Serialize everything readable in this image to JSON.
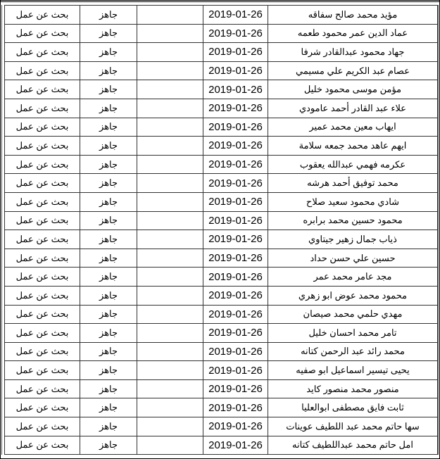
{
  "columns": {
    "status": "بحث عن عمل",
    "state": "جاهز",
    "empty": "",
    "date": "2019-01-26"
  },
  "rows": [
    {
      "name": "مؤيد محمد صالح سفاقه",
      "date": "2019-01-26",
      "ready": "جاهز",
      "status": "بحث عن عمل"
    },
    {
      "name": "عماد الدين عمر محمود طعمه",
      "date": "2019-01-26",
      "ready": "جاهز",
      "status": "بحث عن عمل"
    },
    {
      "name": "جهاد محمود عبدالقادر شرفا",
      "date": "2019-01-26",
      "ready": "جاهز",
      "status": "بحث عن عمل"
    },
    {
      "name": "عصام عبد الكريم علي مسيمي",
      "date": "2019-01-26",
      "ready": "جاهز",
      "status": "بحث عن عمل"
    },
    {
      "name": "مؤمن موسى محمود خليل",
      "date": "2019-01-26",
      "ready": "جاهز",
      "status": "بحث عن عمل"
    },
    {
      "name": "علاء عبد القادر أحمد عامودي",
      "date": "2019-01-26",
      "ready": "جاهز",
      "status": "بحث عن عمل"
    },
    {
      "name": "ايهاب معين محمد عمير",
      "date": "2019-01-26",
      "ready": "جاهز",
      "status": "بحث عن عمل"
    },
    {
      "name": "ايهم عاهد محمد جمعه سلامة",
      "date": "2019-01-26",
      "ready": "جاهز",
      "status": "بحث عن عمل"
    },
    {
      "name": "عكرمه فهمي عبدالله يعقوب",
      "date": "2019-01-26",
      "ready": "جاهز",
      "status": "بحث عن عمل"
    },
    {
      "name": "محمد توفيق أحمد هرشه",
      "date": "2019-01-26",
      "ready": "جاهز",
      "status": "بحث عن عمل"
    },
    {
      "name": "شادي محمود سعيد صلاح",
      "date": "2019-01-26",
      "ready": "جاهز",
      "status": "بحث عن عمل"
    },
    {
      "name": "محمود حسين محمد برابره",
      "date": "2019-01-26",
      "ready": "جاهز",
      "status": "بحث عن عمل"
    },
    {
      "name": "ذياب جمال زهير جيتاوي",
      "date": "2019-01-26",
      "ready": "جاهز",
      "status": "بحث عن عمل"
    },
    {
      "name": "حسين علي حسن حداد",
      "date": "2019-01-26",
      "ready": "جاهز",
      "status": "بحث عن عمل"
    },
    {
      "name": "مجد عامر محمد عمر",
      "date": "2019-01-26",
      "ready": "جاهز",
      "status": "بحث عن عمل"
    },
    {
      "name": "محمود محمد عوض ابو زهري",
      "date": "2019-01-26",
      "ready": "جاهز",
      "status": "بحث عن عمل"
    },
    {
      "name": "مهدي حلمي محمد صيصان",
      "date": "2019-01-26",
      "ready": "جاهز",
      "status": "بحث عن عمل"
    },
    {
      "name": "تامر محمد احسان خليل",
      "date": "2019-01-26",
      "ready": "جاهز",
      "status": "بحث عن عمل"
    },
    {
      "name": "محمد رائد عبد الرحمن كتانه",
      "date": "2019-01-26",
      "ready": "جاهز",
      "status": "بحث عن عمل"
    },
    {
      "name": "يحيى تيسير اسماعيل ابو صفيه",
      "date": "2019-01-26",
      "ready": "جاهز",
      "status": "بحث عن عمل"
    },
    {
      "name": "منصور محمد منصور كايد",
      "date": "2019-01-26",
      "ready": "جاهز",
      "status": "بحث عن عمل"
    },
    {
      "name": "ثابت فايق مصطفى ابوالعليا",
      "date": "2019-01-26",
      "ready": "جاهز",
      "status": "بحث عن عمل"
    },
    {
      "name": "سها حاتم محمد عبد اللطيف عوينات",
      "date": "2019-01-26",
      "ready": "جاهز",
      "status": "بحث عن عمل"
    },
    {
      "name": "امل حاتم محمد عبداللطيف كتانه",
      "date": "2019-01-26",
      "ready": "جاهز",
      "status": "بحث عن عمل"
    }
  ]
}
